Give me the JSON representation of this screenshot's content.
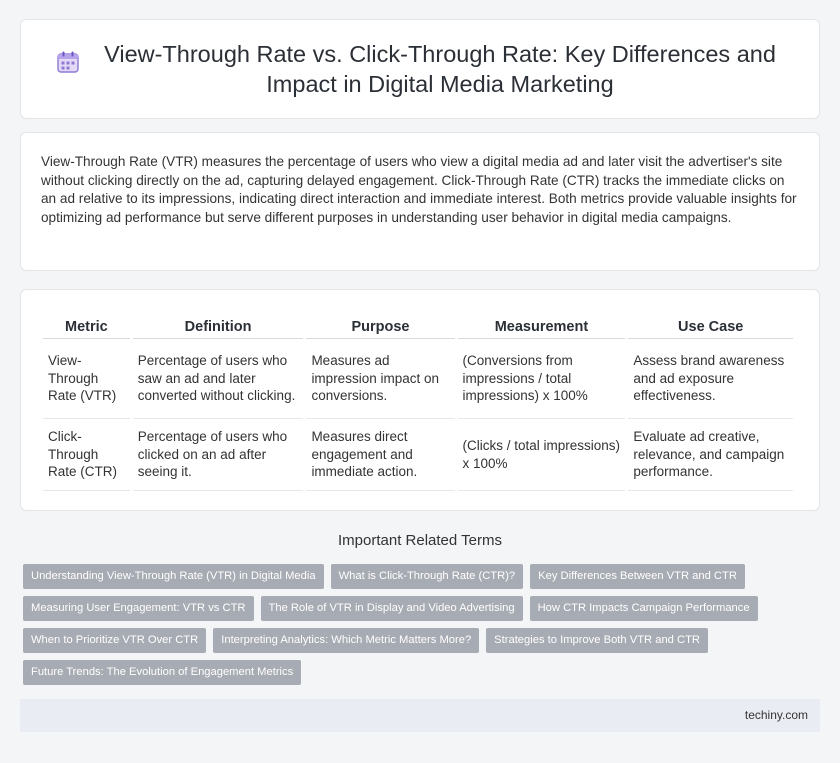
{
  "header": {
    "title": "View-Through Rate vs. Click-Through Rate: Key Differences and Impact in Digital Media Marketing",
    "icon": "calendar-icon"
  },
  "intro": {
    "text": "View-Through Rate (VTR) measures the percentage of users who view a digital media ad and later visit the advertiser's site without clicking directly on the ad, capturing delayed engagement. Click-Through Rate (CTR) tracks the immediate clicks on an ad relative to its impressions, indicating direct interaction and immediate interest. Both metrics provide valuable insights for optimizing ad performance but serve different purposes in understanding user behavior in digital media campaigns."
  },
  "table": {
    "headers": [
      "Metric",
      "Definition",
      "Purpose",
      "Measurement",
      "Use Case"
    ],
    "rows": [
      [
        "View-Through Rate (VTR)",
        "Percentage of users who saw an ad and later converted without clicking.",
        "Measures ad impression impact on conversions.",
        "(Conversions from impressions / total impressions) x 100%",
        "Assess brand awareness and ad exposure effectiveness."
      ],
      [
        "Click-Through Rate (CTR)",
        "Percentage of users who clicked on an ad after seeing it.",
        "Measures direct engagement and immediate action.",
        "(Clicks / total impressions) x 100%",
        "Evaluate ad creative, relevance, and campaign performance."
      ]
    ]
  },
  "related": {
    "title": "Important Related Terms",
    "tags": [
      "Understanding View-Through Rate (VTR) in Digital Media",
      "What is Click-Through Rate (CTR)?",
      "Key Differences Between VTR and CTR",
      "Measuring User Engagement: VTR vs CTR",
      "The Role of VTR in Display and Video Advertising",
      "How CTR Impacts Campaign Performance",
      "When to Prioritize VTR Over CTR",
      "Interpreting Analytics: Which Metric Matters More?",
      "Strategies to Improve Both VTR and CTR",
      "Future Trends: The Evolution of Engagement Metrics"
    ]
  },
  "footer": {
    "brand": "techiny.com"
  }
}
